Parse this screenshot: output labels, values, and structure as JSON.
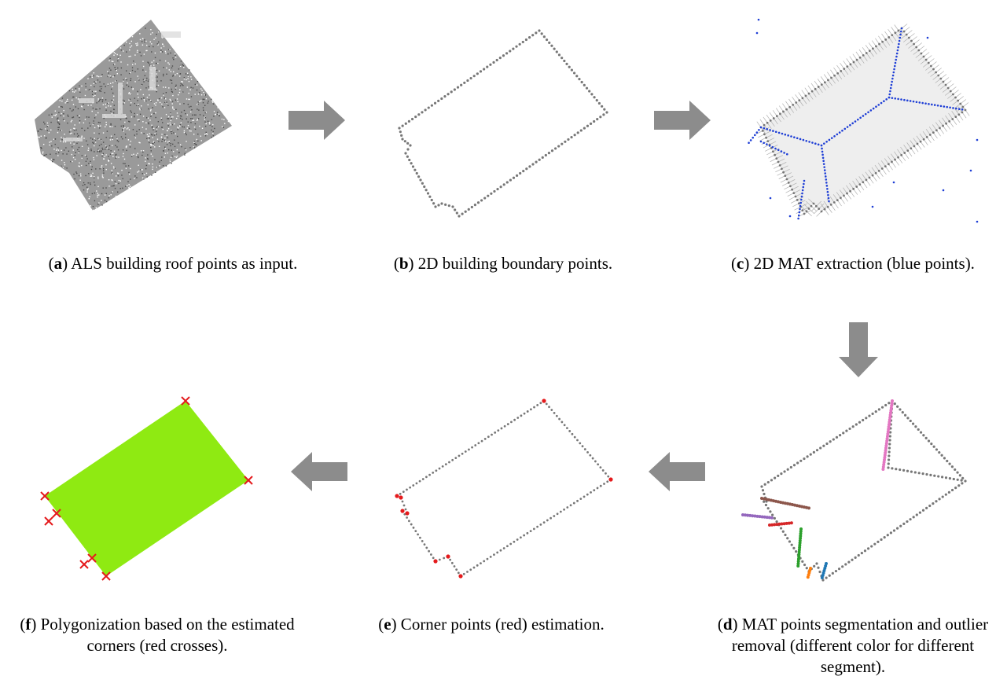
{
  "panels": [
    {
      "id": "a",
      "letter": "a",
      "caption": ") ALS building roof points as input."
    },
    {
      "id": "b",
      "letter": "b",
      "caption": ") 2D building boundary points."
    },
    {
      "id": "c",
      "letter": "c",
      "caption": ") 2D MAT extraction (blue points)."
    },
    {
      "id": "d",
      "letter": "d",
      "caption": ") MAT points segmentation and outlier removal (different color for different segment)."
    },
    {
      "id": "e",
      "letter": "e",
      "caption": ") Corner points (red) estimation."
    },
    {
      "id": "f",
      "letter": "f",
      "caption": ") Polygonization based on the estimated corners (red crosses)."
    }
  ],
  "colors": {
    "boundary": "#777777",
    "mat_blue": "#1f3fd6",
    "corner_red": "#e41a1c",
    "polygon_fill": "#8fea12",
    "arrow": "#8c8c8c",
    "segments": [
      "#e377c2",
      "#8c564b",
      "#9467bd",
      "#d62728",
      "#2ca02c",
      "#ff7f0e",
      "#1f77b4"
    ]
  },
  "icons": [
    "arrow-right-icon",
    "arrow-right-icon",
    "arrow-down-icon",
    "arrow-left-icon",
    "arrow-left-icon",
    "cross-marker-icon"
  ]
}
